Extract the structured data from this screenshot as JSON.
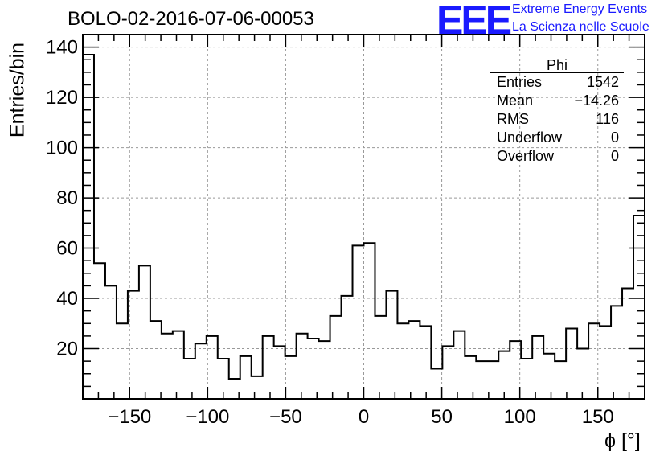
{
  "header": {
    "title": "BOLO-02-2016-07-06-00053",
    "logo_text": "EEE",
    "logo_line1": "Extreme Energy Events",
    "logo_line2": "La Scienza nelle Scuole"
  },
  "stats_box": {
    "title": "Phi",
    "rows": [
      {
        "label": "Entries",
        "value": "1542"
      },
      {
        "label": "Mean",
        "value": "−14.26"
      },
      {
        "label": "RMS",
        "value": "116"
      },
      {
        "label": "Underflow",
        "value": "0"
      },
      {
        "label": "Overflow",
        "value": "0"
      }
    ]
  },
  "colors": {
    "logo": "#1a1aff",
    "grid": "#999999",
    "line": "#000000"
  },
  "chart_data": {
    "type": "histogram",
    "title": "BOLO-02-2016-07-06-00053",
    "xlabel": "ϕ [°]",
    "ylabel": "Entries/bin",
    "xlim": [
      -180,
      180
    ],
    "ylim": [
      0,
      145
    ],
    "bin_width": 7.2,
    "bin_edges_start": -180,
    "values": [
      137,
      54,
      45,
      30,
      43,
      53,
      31,
      26,
      27,
      16,
      22,
      25,
      16,
      8,
      17,
      9,
      25,
      21,
      17,
      26,
      24,
      23,
      33,
      41,
      61,
      62,
      33,
      43,
      30,
      31,
      29,
      12,
      21,
      27,
      17,
      15,
      15,
      19,
      23,
      16,
      25,
      18,
      15,
      28,
      20,
      30,
      29,
      37,
      44,
      73
    ],
    "xticks": [
      -150,
      -100,
      -50,
      0,
      50,
      100,
      150
    ],
    "xtick_labels": [
      "−150",
      "−100",
      "−50",
      "0",
      "50",
      "100",
      "150"
    ],
    "yticks": [
      20,
      40,
      60,
      80,
      100,
      120,
      140
    ],
    "ytick_labels": [
      "20",
      "40",
      "60",
      "80",
      "100",
      "120",
      "140"
    ],
    "grid": true
  }
}
